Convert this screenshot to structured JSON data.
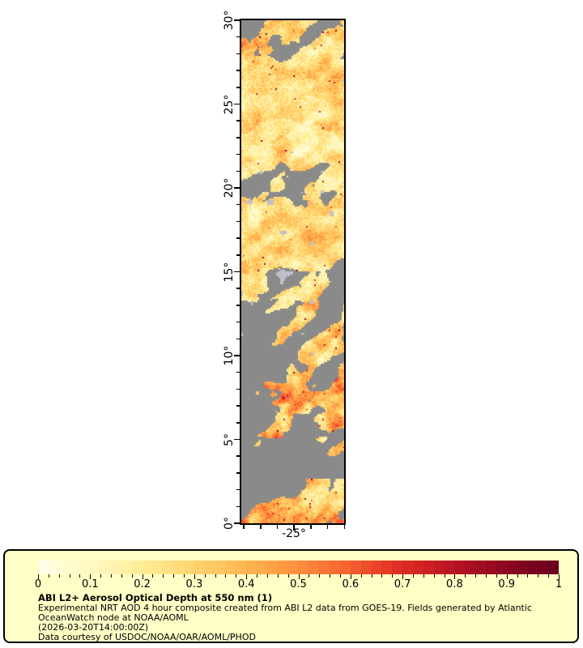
{
  "figure": {
    "lat_axis": {
      "major_labels": [
        "30°",
        "25°",
        "20°",
        "15°",
        "10°",
        "5°",
        "0°"
      ],
      "major_values": [
        30,
        25,
        20,
        15,
        10,
        5,
        0
      ],
      "min_deg": 0,
      "max_deg": 30,
      "minor_step_deg": 1
    },
    "lon_axis": {
      "major_label": "-25°",
      "major_value": -25,
      "min_deg": -28.15,
      "max_deg": -22.0,
      "minor_step_deg": 1
    }
  },
  "legend": {
    "background": "#FFFFC6",
    "tick_labels": [
      "0",
      "0.1",
      "0.2",
      "0.3",
      "0.4",
      "0.5",
      "0.6",
      "0.7",
      "0.8",
      "0.9",
      "1"
    ],
    "title": "ABI L2+ Aerosol Optical Depth at 550 nm (1)",
    "description_lines": [
      "Experimental NRT AOD 4 hour composite created from ABI L2 data from GOES-19. Fields generated by Atlantic",
      "OceanWatch node at NOAA/AOML",
      "(2026-03-20T14:00:00Z)",
      "Data courtesy of USDOC/NOAA/OAR/AOML/PHOD"
    ]
  },
  "chart_data": {
    "type": "heatmap",
    "title": "ABI L2+ Aerosol Optical Depth at 550 nm (1)",
    "variable": "Aerosol Optical Depth at 550 nm",
    "lat_range": [
      0,
      30
    ],
    "lon_range": [
      -28.15,
      -22.0
    ],
    "colorbar": {
      "min": 0,
      "max": 1,
      "tick_labels": [
        "0",
        "0.1",
        "0.2",
        "0.3",
        "0.4",
        "0.5",
        "0.6",
        "0.7",
        "0.8",
        "0.9",
        "1"
      ],
      "stops": [
        [
          0.0,
          "#FFFFE8"
        ],
        [
          0.1,
          "#FFF8C2"
        ],
        [
          0.2,
          "#FFEC96"
        ],
        [
          0.3,
          "#FFD470"
        ],
        [
          0.4,
          "#FFB54F"
        ],
        [
          0.5,
          "#FF8F3E"
        ],
        [
          0.6,
          "#F55F2E"
        ],
        [
          0.7,
          "#DE2A23"
        ],
        [
          0.8,
          "#B81324"
        ],
        [
          0.9,
          "#8A0620"
        ],
        [
          1.0,
          "#68001E"
        ]
      ]
    },
    "no_data_color": "#8A8A8A",
    "cloud_color": "#BFBFC9",
    "field_bands": [
      {
        "lat_max": 30.0,
        "lat_min": 28.7,
        "coverage": 0.55,
        "mean_aod": 0.3,
        "spread": 0.22,
        "speckle": 1.0,
        "tilt": 0.0,
        "cloud": 0.0
      },
      {
        "lat_max": 28.7,
        "lat_min": 27.7,
        "coverage": 0.62,
        "mean_aod": 0.3,
        "spread": 0.26,
        "speckle": 1.3,
        "tilt": 0.15,
        "cloud": 0.0
      },
      {
        "lat_max": 27.7,
        "lat_min": 23.6,
        "coverage": 0.96,
        "mean_aod": 0.28,
        "spread": 0.2,
        "speckle": 1.0,
        "tilt": 0.0,
        "cloud": 0.05
      },
      {
        "lat_max": 23.6,
        "lat_min": 22.3,
        "coverage": 0.97,
        "mean_aod": 0.18,
        "spread": 0.14,
        "speckle": 0.4,
        "tilt": 0.0,
        "cloud": 0.0
      },
      {
        "lat_max": 22.3,
        "lat_min": 21.2,
        "coverage": 0.95,
        "mean_aod": 0.26,
        "spread": 0.2,
        "speckle": 0.8,
        "tilt": 0.0,
        "cloud": 0.05
      },
      {
        "lat_max": 21.2,
        "lat_min": 19.2,
        "coverage": 0.5,
        "mean_aod": 0.27,
        "spread": 0.22,
        "speckle": 0.7,
        "tilt": 0.0,
        "cloud": 0.15
      },
      {
        "lat_max": 19.2,
        "lat_min": 15.4,
        "coverage": 0.93,
        "mean_aod": 0.27,
        "spread": 0.22,
        "speckle": 0.8,
        "tilt": 0.0,
        "cloud": 0.22
      },
      {
        "lat_max": 15.4,
        "lat_min": 13.2,
        "coverage": 0.6,
        "mean_aod": 0.28,
        "spread": 0.24,
        "speckle": 0.9,
        "tilt": 0.55,
        "cloud": 0.3
      },
      {
        "lat_max": 13.2,
        "lat_min": 8.2,
        "coverage": 0.37,
        "mean_aod": 0.33,
        "spread": 0.28,
        "speckle": 1.2,
        "tilt": -0.3,
        "cloud": 0.05
      },
      {
        "lat_max": 8.2,
        "lat_min": 5.4,
        "coverage": 0.55,
        "mean_aod": 0.4,
        "spread": 0.33,
        "speckle": 2.6,
        "tilt": -0.55,
        "cloud": 0.0
      },
      {
        "lat_max": 5.4,
        "lat_min": 2.3,
        "coverage": 0.1,
        "mean_aod": 0.32,
        "spread": 0.25,
        "speckle": 1.0,
        "tilt": -0.15,
        "cloud": 0.0
      },
      {
        "lat_max": 2.3,
        "lat_min": 1.0,
        "coverage": 0.34,
        "mean_aod": 0.36,
        "spread": 0.3,
        "speckle": 1.6,
        "tilt": -0.45,
        "cloud": 0.0
      },
      {
        "lat_max": 1.0,
        "lat_min": 0.0,
        "coverage": 0.5,
        "mean_aod": 0.42,
        "spread": 0.32,
        "speckle": 2.2,
        "tilt": 0.1,
        "cloud": 0.0
      }
    ]
  }
}
